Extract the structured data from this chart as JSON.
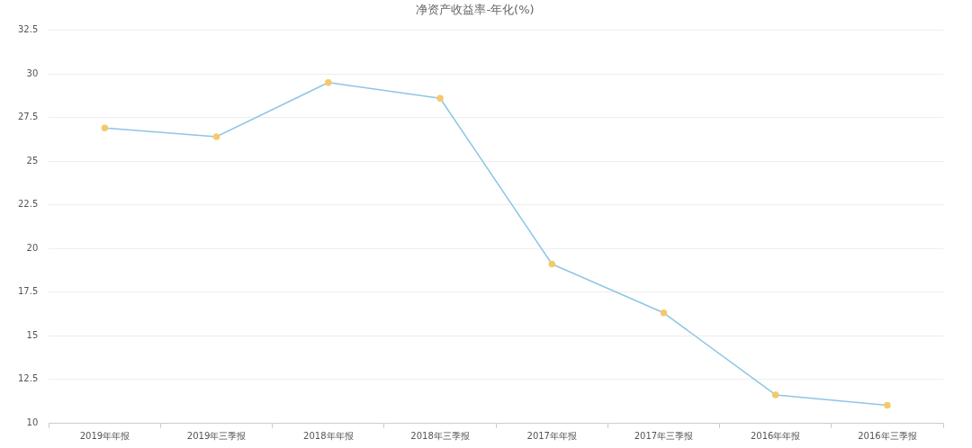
{
  "chart_data": {
    "type": "line",
    "title": "净资产收益率-年化(%)",
    "categories": [
      "2019年年报",
      "2019年三季报",
      "2018年年报",
      "2018年三季报",
      "2017年年报",
      "2017年三季报",
      "2016年年报",
      "2016年三季报"
    ],
    "series": [
      {
        "color": "#8ec5e6",
        "colors": [
          "#f5c96b",
          "#f5c96b",
          "#f5c96b",
          "#f5c96b",
          "#f5c96b",
          "#f5c96b",
          "#f5c96b",
          "#f5c96b"
        ],
        "values": [
          26.9,
          26.4,
          29.5,
          28.6,
          19.1,
          16.3,
          11.6,
          11.0
        ]
      }
    ],
    "ylim": [
      10,
      32.5
    ],
    "yticks": [
      10,
      12.5,
      15,
      17.5,
      20,
      22.5,
      25,
      27.5,
      30,
      32.5
    ],
    "grid": "y",
    "legend": false,
    "marker": "circle",
    "line_style": "solid"
  }
}
